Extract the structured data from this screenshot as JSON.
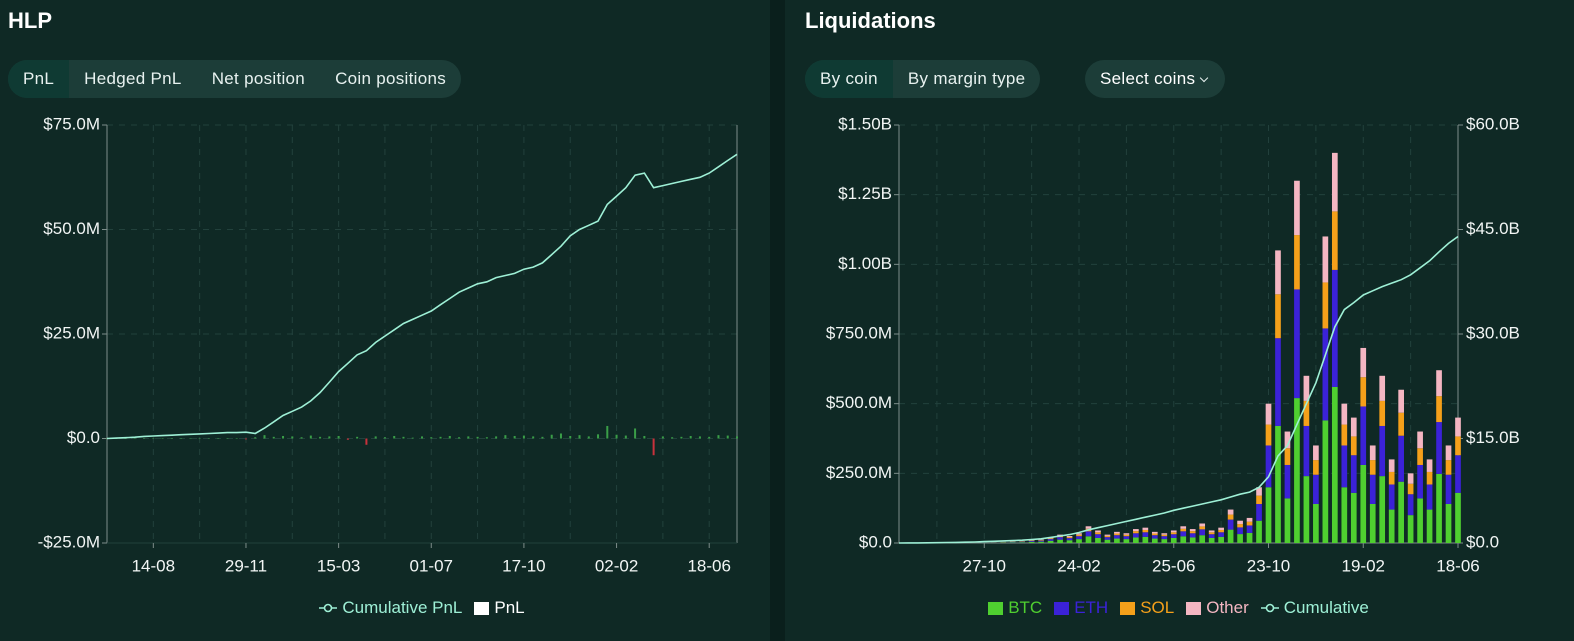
{
  "tabs": {
    "hlp": [
      "PnL",
      "Hedged PnL",
      "Net position",
      "Coin positions"
    ],
    "hlp_active": 0,
    "liquidations": [
      "By coin",
      "By margin type"
    ],
    "liquidations_active": 0,
    "select": "Select coins"
  },
  "chart_data": [
    {
      "type": "combo",
      "title": "HLP",
      "categories": [
        null,
        null,
        null,
        null,
        null,
        "14-08",
        null,
        null,
        null,
        null,
        null,
        null,
        null,
        null,
        null,
        "29-11",
        null,
        null,
        null,
        null,
        null,
        null,
        null,
        null,
        null,
        "15-03",
        null,
        null,
        null,
        null,
        null,
        null,
        null,
        null,
        null,
        "01-07",
        null,
        null,
        null,
        null,
        null,
        null,
        null,
        null,
        null,
        "17-10",
        null,
        null,
        null,
        null,
        null,
        null,
        null,
        null,
        null,
        "02-02",
        null,
        null,
        null,
        null,
        null,
        null,
        null,
        null,
        null,
        "18-06",
        null,
        null,
        null
      ],
      "ylim": [
        -25000000,
        75000000
      ],
      "yticks": [
        {
          "value": -25000000,
          "label": "-$25.0M"
        },
        {
          "value": 0,
          "label": "$0.0"
        },
        {
          "value": 25000000,
          "label": "$25.0M"
        },
        {
          "value": 50000000,
          "label": "$50.0M"
        },
        {
          "value": 75000000,
          "label": "$75.0M"
        }
      ],
      "grid": true,
      "series": [
        {
          "name": "Cumulative PnL",
          "type": "line",
          "color": "#9ef0d6",
          "values": [
            0,
            100000,
            200000,
            300000,
            500000,
            600000,
            700000,
            800000,
            900000,
            1000000,
            1100000,
            1200000,
            1300000,
            1400000,
            1400000,
            1500000,
            1200000,
            2500000,
            4000000,
            5500000,
            6500000,
            7500000,
            9000000,
            11000000,
            13500000,
            16000000,
            18000000,
            20000000,
            21000000,
            23000000,
            24500000,
            26000000,
            27500000,
            28500000,
            29500000,
            30500000,
            32000000,
            33500000,
            35000000,
            36000000,
            37000000,
            37500000,
            38500000,
            39000000,
            39500000,
            40500000,
            41000000,
            42000000,
            44000000,
            46000000,
            48500000,
            50000000,
            51000000,
            52000000,
            56000000,
            58000000,
            60000000,
            63000000,
            63500000,
            60000000,
            60500000,
            61000000,
            61500000,
            62000000,
            62500000,
            63500000,
            65000000,
            66500000,
            68000000
          ]
        },
        {
          "name": "PnL",
          "type": "bar",
          "color": "#ffffff",
          "positive_color": "#3a9e48",
          "negative_color": "#c8323c",
          "values": [
            0,
            20000,
            30000,
            10000,
            40000,
            20000,
            30000,
            10000,
            20000,
            50000,
            30000,
            20000,
            40000,
            30000,
            10000,
            -200000,
            300000,
            800000,
            400000,
            600000,
            500000,
            300000,
            700000,
            400000,
            500000,
            600000,
            -300000,
            400000,
            -1500000,
            500000,
            300000,
            600000,
            400000,
            200000,
            500000,
            300000,
            400000,
            600000,
            300000,
            500000,
            400000,
            300000,
            500000,
            800000,
            600000,
            700000,
            500000,
            400000,
            900000,
            1200000,
            600000,
            800000,
            500000,
            1000000,
            3000000,
            900000,
            700000,
            2400000,
            600000,
            -4000000,
            500000,
            300000,
            400000,
            600000,
            500000,
            400000,
            800000,
            700000,
            500000
          ]
        }
      ]
    },
    {
      "type": "combo",
      "title": "Liquidations",
      "stacked": true,
      "categories": [
        null,
        null,
        null,
        null,
        null,
        null,
        null,
        null,
        null,
        "27-10",
        null,
        null,
        null,
        null,
        null,
        null,
        null,
        null,
        null,
        "24-02",
        null,
        null,
        null,
        null,
        null,
        null,
        null,
        null,
        null,
        "25-06",
        null,
        null,
        null,
        null,
        null,
        null,
        null,
        null,
        null,
        "23-10",
        null,
        null,
        null,
        null,
        null,
        null,
        null,
        null,
        null,
        "19-02",
        null,
        null,
        null,
        null,
        null,
        null,
        null,
        null,
        null,
        "18-06"
      ],
      "ylim": [
        0,
        1500000000
      ],
      "yticks": [
        {
          "value": 0,
          "label": "$0.0"
        },
        {
          "value": 250000000,
          "label": "$250.0M"
        },
        {
          "value": 500000000,
          "label": "$500.0M"
        },
        {
          "value": 750000000,
          "label": "$750.0M"
        },
        {
          "value": 1000000000,
          "label": "$1.00B"
        },
        {
          "value": 1250000000,
          "label": "$1.25B"
        },
        {
          "value": 1500000000,
          "label": "$1.50B"
        }
      ],
      "y2lim": [
        0,
        60000000000
      ],
      "y2ticks": [
        {
          "value": 0,
          "label": "$0.0"
        },
        {
          "value": 15000000000,
          "label": "$15.0B"
        },
        {
          "value": 30000000000,
          "label": "$30.0B"
        },
        {
          "value": 45000000000,
          "label": "$45.0B"
        },
        {
          "value": 60000000000,
          "label": "$60.0B"
        }
      ],
      "grid": true,
      "series": [
        {
          "name": "BTC",
          "type": "bar",
          "color": "#4fcf30",
          "values": [
            200000,
            200000,
            400000,
            400000,
            400000,
            600000,
            400000,
            800000,
            800000,
            1200000,
            1200000,
            1600000,
            2000000,
            2400000,
            4000000,
            4800000,
            8000000,
            12000000,
            10000000,
            14000000,
            24000000,
            18000000,
            12000000,
            16000000,
            14000000,
            20000000,
            22000000,
            16000000,
            14000000,
            18000000,
            24000000,
            20000000,
            28000000,
            18000000,
            22000000,
            48000000,
            32000000,
            36000000,
            80000000,
            200000000,
            420000000,
            160000000,
            520000000,
            240000000,
            140000000,
            440000000,
            560000000,
            200000000,
            180000000,
            280000000,
            140000000,
            240000000,
            120000000,
            220000000,
            100000000,
            160000000,
            120000000,
            248000000,
            140000000,
            180000000
          ]
        },
        {
          "name": "ETH",
          "type": "bar",
          "color": "#3b22d8",
          "values": [
            150000,
            150000,
            300000,
            300000,
            300000,
            450000,
            300000,
            600000,
            600000,
            900000,
            900000,
            1200000,
            1500000,
            1800000,
            3000000,
            3600000,
            6000000,
            9000000,
            7500000,
            10500000,
            18000000,
            13500000,
            9000000,
            12000000,
            10500000,
            15000000,
            16500000,
            12000000,
            10500000,
            13500000,
            18000000,
            15000000,
            21000000,
            13500000,
            16500000,
            36000000,
            24000000,
            27000000,
            60000000,
            150000000,
            315000000,
            120000000,
            390000000,
            180000000,
            105000000,
            330000000,
            420000000,
            150000000,
            135000000,
            210000000,
            105000000,
            180000000,
            90000000,
            165000000,
            75000000,
            120000000,
            90000000,
            186000000,
            105000000,
            135000000
          ]
        },
        {
          "name": "SOL",
          "type": "bar",
          "color": "#f5a01a",
          "values": [
            75000,
            75000,
            150000,
            150000,
            150000,
            225000,
            150000,
            300000,
            300000,
            450000,
            450000,
            600000,
            750000,
            900000,
            1500000,
            1800000,
            3000000,
            4500000,
            3750000,
            5250000,
            9000000,
            6750000,
            4500000,
            6000000,
            5250000,
            7500000,
            8250000,
            6000000,
            5250000,
            6750000,
            9000000,
            7500000,
            10500000,
            6750000,
            8250000,
            18000000,
            12000000,
            13500000,
            30000000,
            75000000,
            157500000,
            60000000,
            195000000,
            90000000,
            52500000,
            165000000,
            210000000,
            75000000,
            67500000,
            105000000,
            52500000,
            90000000,
            45000000,
            82500000,
            37500000,
            60000000,
            45000000,
            93000000,
            52500000,
            67500000
          ]
        },
        {
          "name": "Other",
          "type": "bar",
          "color": "#f4b6c2",
          "values": [
            75000,
            75000,
            150000,
            150000,
            150000,
            225000,
            150000,
            300000,
            300000,
            450000,
            450000,
            600000,
            750000,
            900000,
            1500000,
            1800000,
            3000000,
            4500000,
            3750000,
            5250000,
            9000000,
            6750000,
            4500000,
            6000000,
            5250000,
            7500000,
            8250000,
            6000000,
            5250000,
            6750000,
            9000000,
            7500000,
            10500000,
            6750000,
            8250000,
            18000000,
            12000000,
            13500000,
            30000000,
            75000000,
            157500000,
            60000000,
            195000000,
            90000000,
            52500000,
            165000000,
            210000000,
            75000000,
            67500000,
            105000000,
            52500000,
            90000000,
            45000000,
            82500000,
            37500000,
            60000000,
            45000000,
            93000000,
            52500000,
            67500000
          ]
        },
        {
          "name": "Cumulative",
          "type": "line",
          "axis": "y2",
          "color": "#9ef0d6",
          "values": [
            0,
            10000000,
            20000000,
            30000000,
            50000000,
            70000000,
            90000000,
            120000000,
            150000000,
            200000000,
            250000000,
            300000000,
            350000000,
            400000000,
            500000000,
            600000000,
            800000000,
            1000000000,
            1200000000,
            1500000000,
            1900000000,
            2200000000,
            2500000000,
            2800000000,
            3100000000,
            3400000000,
            3700000000,
            4000000000,
            4300000000,
            4700000000,
            5000000000,
            5300000000,
            5600000000,
            5900000000,
            6200000000,
            6600000000,
            7000000000,
            7300000000,
            8000000000,
            9500000000,
            12500000000,
            14000000000,
            17000000000,
            20000000000,
            23000000000,
            27000000000,
            31000000000,
            33500000000,
            34500000000,
            35600000000,
            36200000000,
            36800000000,
            37300000000,
            37800000000,
            38500000000,
            39500000000,
            40500000000,
            41800000000,
            43000000000,
            44000000000
          ]
        }
      ]
    }
  ]
}
